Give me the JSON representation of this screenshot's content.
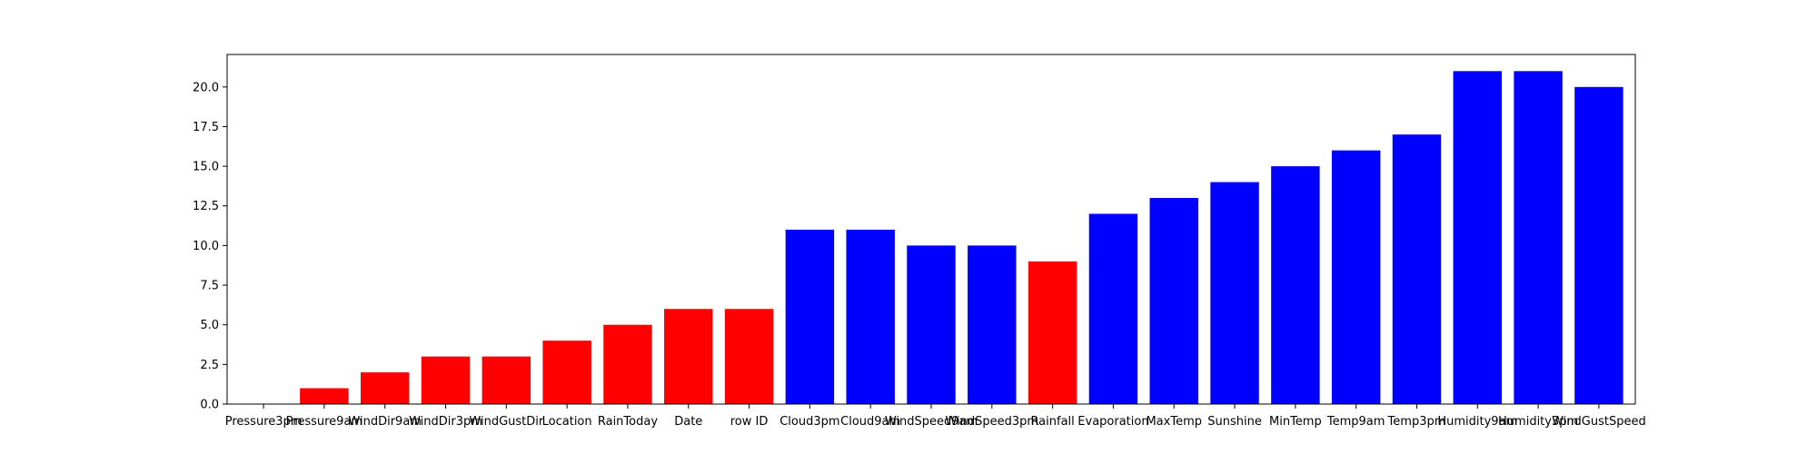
{
  "chart_data": {
    "type": "bar",
    "title": "",
    "xlabel": "",
    "ylabel": "",
    "ylim": [
      0,
      22.05
    ],
    "yticks": [
      "0.0",
      "2.5",
      "5.0",
      "7.5",
      "10.0",
      "12.5",
      "15.0",
      "17.5",
      "20.0"
    ],
    "grid": false,
    "categories": [
      "Pressure3pm",
      "Pressure9am",
      "WindDir9am",
      "WindDir3pm",
      "WindGustDir",
      "Location",
      "RainToday",
      "Date",
      "row ID",
      "Cloud3pm",
      "Cloud9am",
      "WindSpeed9am",
      "WindSpeed3pm",
      "Rainfall",
      "Evaporation",
      "MaxTemp",
      "Sunshine",
      "MinTemp",
      "Temp9am",
      "Temp3pm",
      "Humidity9am",
      "Humidity3pm",
      "WindGustSpeed"
    ],
    "values": [
      0,
      1,
      2,
      3,
      3,
      4,
      5,
      6,
      6,
      11,
      11,
      10,
      10,
      9,
      12,
      13,
      14,
      15,
      16,
      17,
      21,
      21,
      20
    ],
    "colors": [
      "#ff0000",
      "#ff0000",
      "#ff0000",
      "#ff0000",
      "#ff0000",
      "#ff0000",
      "#ff0000",
      "#ff0000",
      "#ff0000",
      "#0000ff",
      "#0000ff",
      "#0000ff",
      "#0000ff",
      "#ff0000",
      "#0000ff",
      "#0000ff",
      "#0000ff",
      "#0000ff",
      "#0000ff",
      "#0000ff",
      "#0000ff",
      "#0000ff",
      "#0000ff"
    ]
  }
}
